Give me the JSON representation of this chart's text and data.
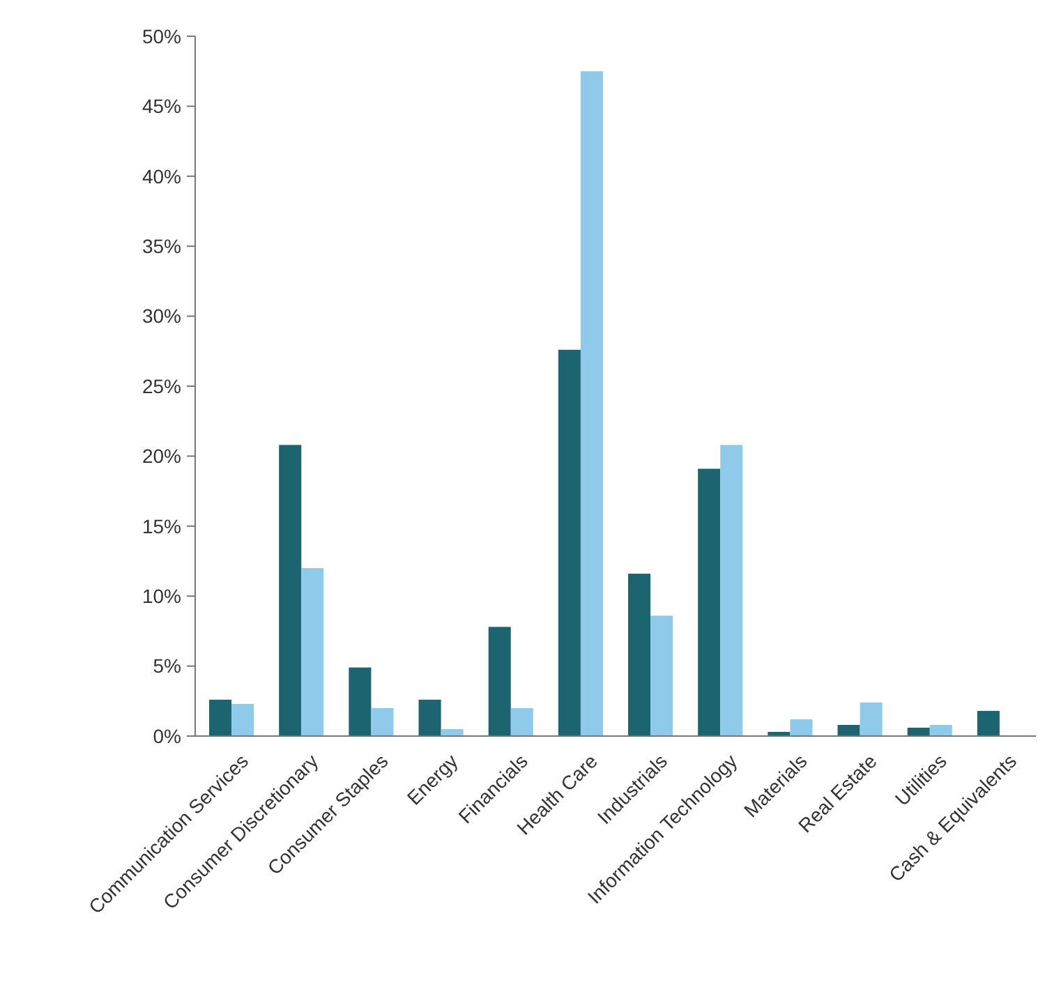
{
  "chart_data": {
    "type": "bar",
    "categories": [
      "Communication Services",
      "Consumer Discretionary",
      "Consumer Staples",
      "Energy",
      "Financials",
      "Health Care",
      "Industrials",
      "Information Technology",
      "Materials",
      "Real Estate",
      "Utilities",
      "Cash & Equivalents"
    ],
    "series": [
      {
        "color": "#1b6470",
        "values": [
          2.6,
          20.8,
          4.9,
          2.6,
          7.8,
          27.6,
          11.6,
          19.1,
          0.3,
          0.8,
          0.6,
          1.8
        ]
      },
      {
        "color": "#8fcaea",
        "values": [
          2.3,
          12.0,
          2.0,
          0.5,
          2.0,
          47.5,
          8.6,
          20.8,
          1.2,
          2.4,
          0.8,
          null
        ]
      }
    ],
    "ylim": [
      0,
      50
    ],
    "yticks": [
      {
        "value": 0,
        "label": "0%"
      },
      {
        "value": 5,
        "label": "5%"
      },
      {
        "value": 10,
        "label": "10%"
      },
      {
        "value": 15,
        "label": "15%"
      },
      {
        "value": 20,
        "label": "20%"
      },
      {
        "value": 25,
        "label": "25%"
      },
      {
        "value": 30,
        "label": "30%"
      },
      {
        "value": 35,
        "label": "35%"
      },
      {
        "value": 40,
        "label": "40%"
      },
      {
        "value": 45,
        "label": "45%"
      },
      {
        "value": 50,
        "label": "50%"
      }
    ],
    "grid": false
  }
}
